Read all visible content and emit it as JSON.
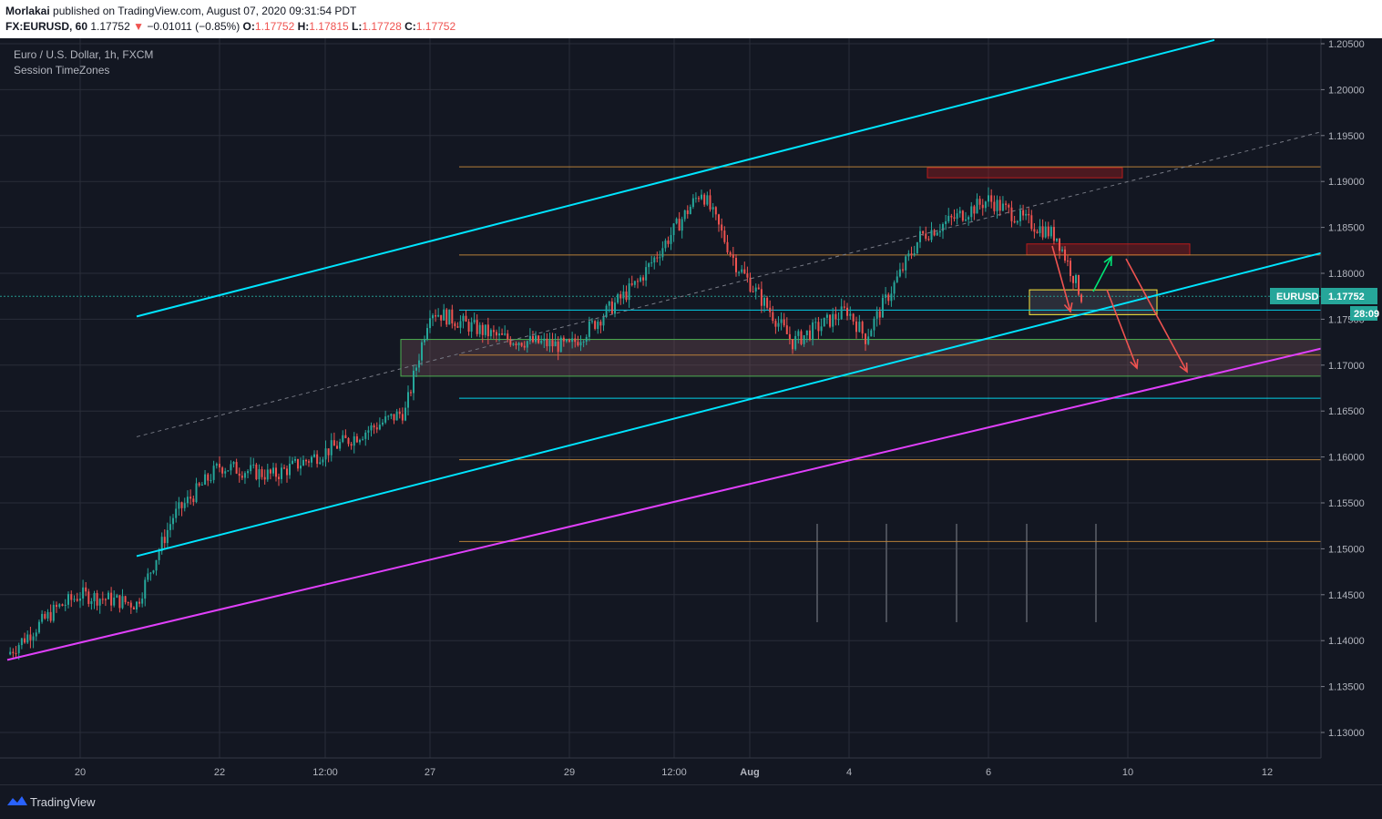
{
  "header": {
    "author": "Morlakai",
    "published_text": "published on TradingView.com, August 07, 2020 09:31:54 PDT",
    "symbol": "FX:EURUSD, 60",
    "last": "1.17752",
    "change_arrow": "▼",
    "change": "−0.01011 (−0.85%)",
    "o_label": "O:",
    "o_value": "1.17752",
    "h_label": "H:",
    "h_value": "1.17815",
    "l_label": "L:",
    "l_value": "1.17728",
    "c_label": "C:",
    "c_value": "1.17752"
  },
  "legend": {
    "title": "Euro / U.S. Dollar, 1h, FXCM",
    "indicator": "Session TimeZones"
  },
  "badges": {
    "symbol": "EURUSD",
    "price": "1.17752",
    "countdown": "28:09"
  },
  "footer": {
    "brand": "TradingView",
    "icon": "tradingview-logo-icon"
  },
  "colors": {
    "background": "#131722",
    "grid": "#2a2e39",
    "bull": "#26a69a",
    "bear": "#ef5350",
    "channel": "#00e5ff",
    "support": "#e040fb",
    "level": "#c78a3b",
    "zone_green": "#4caf50",
    "zone_red": "#b71c1c",
    "zone_yellow": "#ffeb3b",
    "price_line": "#26a69a"
  },
  "chart_data": {
    "type": "candlestick",
    "title": "Euro / U.S. Dollar, 1h, FXCM",
    "price_axis": {
      "ticks": [
        "1.20500",
        "1.20000",
        "1.19500",
        "1.19000",
        "1.18500",
        "1.18000",
        "1.17500",
        "1.17000",
        "1.16500",
        "1.16000",
        "1.15500",
        "1.15000",
        "1.14500",
        "1.14000",
        "1.13500",
        "1.13000"
      ],
      "range": [
        1.1277,
        1.2052
      ]
    },
    "time_axis": {
      "ticks": [
        "20",
        "22",
        "12:00",
        "27",
        "29",
        "12:00",
        "Aug",
        "4",
        "6",
        "10",
        "12"
      ]
    },
    "last_price": 1.17752,
    "close_path": [
      [
        "Jul 17",
        1.1385
      ],
      [
        "Jul 19",
        1.1435
      ],
      [
        "Jul 20",
        1.145
      ],
      [
        "Jul 21",
        1.144
      ],
      [
        "Jul 21 pm",
        1.1535
      ],
      [
        "Jul 22",
        1.159
      ],
      [
        "Jul 23",
        1.158
      ],
      [
        "Jul 24",
        1.16
      ],
      [
        "Jul 24 pm",
        1.165
      ],
      [
        "Jul 27",
        1.176
      ],
      [
        "Jul 28",
        1.173
      ],
      [
        "Jul 29",
        1.172
      ],
      [
        "Jul 30",
        1.179
      ],
      [
        "Jul 31",
        1.189
      ],
      [
        "Jul 31 pm",
        1.181
      ],
      [
        "Aug 3",
        1.1725
      ],
      [
        "Aug 4",
        1.176
      ],
      [
        "Aug 4 pm",
        1.173
      ],
      [
        "Aug 5",
        1.184
      ],
      [
        "Aug 6",
        1.188
      ],
      [
        "Aug 6 pm",
        1.186
      ],
      [
        "Aug 7",
        1.184
      ],
      [
        "Aug 7 now",
        1.17752
      ]
    ],
    "horizontal_levels": [
      1.1916,
      1.182,
      1.1775,
      1.176,
      1.1711,
      1.1664,
      1.1597,
      1.1508
    ],
    "zones": [
      {
        "name": "green demand zone",
        "low": 1.1688,
        "high": 1.1728
      },
      {
        "name": "red top zone",
        "low": 1.1904,
        "high": 1.1915
      },
      {
        "name": "red supply zone",
        "low": 1.182,
        "high": 1.1832
      },
      {
        "name": "yellow current zone",
        "low": 1.1755,
        "high": 1.1782
      }
    ],
    "trendlines": [
      {
        "name": "upper channel",
        "from": [
          "Jul 21",
          1.1753
        ],
        "to": [
          "Aug 11",
          1.2054
        ]
      },
      {
        "name": "lower channel",
        "from": [
          "Jul 21",
          1.1492
        ],
        "to": [
          "Aug 12",
          1.1822
        ]
      },
      {
        "name": "support",
        "from": [
          "Jul 17",
          1.1379
        ],
        "to": [
          "Aug 12",
          1.1718
        ]
      },
      {
        "name": "mid channel dashed",
        "from": [
          "Jul 21",
          1.1622
        ],
        "to": [
          "Aug 12",
          1.1954
        ]
      }
    ],
    "grid": true
  }
}
